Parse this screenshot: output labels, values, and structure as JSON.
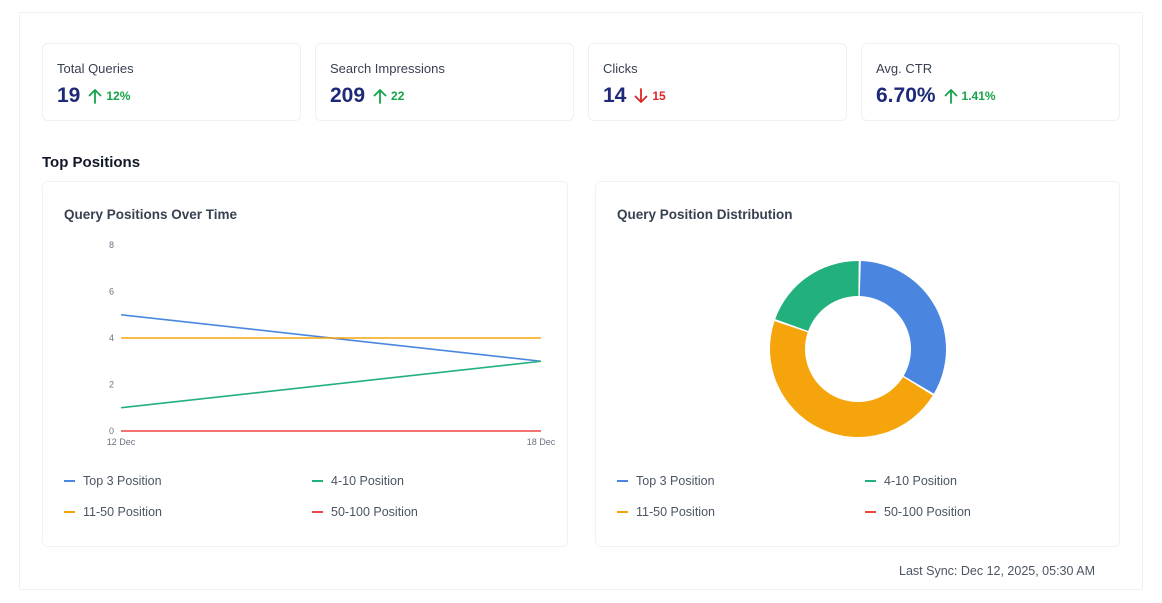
{
  "stats": [
    {
      "label": "Total Queries",
      "value": "19",
      "trend": "up",
      "change": "12%"
    },
    {
      "label": "Search Impressions",
      "value": "209",
      "trend": "up",
      "change": "22"
    },
    {
      "label": "Clicks",
      "value": "14",
      "trend": "down",
      "change": "15"
    },
    {
      "label": "Avg. CTR",
      "value": "6.70%",
      "trend": "up",
      "change": "1.41%"
    }
  ],
  "colors": {
    "up": "#16a34a",
    "down": "#dc2626"
  },
  "section_title": "Top Positions",
  "line_panel": {
    "title": "Query Positions Over Time"
  },
  "donut_panel": {
    "title": "Query Position Distribution"
  },
  "legend": [
    {
      "name": "Top 3 Position",
      "color": "#4a86e0"
    },
    {
      "name": "4-10 Position",
      "color": "#22b07d"
    },
    {
      "name": "11-50 Position",
      "color": "#f5a50b"
    },
    {
      "name": "50-100 Position",
      "color": "#ef4444"
    }
  ],
  "footer": {
    "last_sync": "Last Sync: Dec 12, 2025, 05:30 AM"
  },
  "chart_data": [
    {
      "type": "line",
      "title": "Query Positions Over Time",
      "x": [
        "12 Dec",
        "18 Dec"
      ],
      "yticks": [
        0,
        2,
        4,
        6,
        8
      ],
      "ylim": [
        0,
        8
      ],
      "grid": false,
      "legend_position": "bottom",
      "series": [
        {
          "name": "Top 3 Position",
          "color": "#4a86e0",
          "values": [
            5,
            3
          ]
        },
        {
          "name": "4-10 Position",
          "color": "#22b07d",
          "values": [
            1,
            3
          ]
        },
        {
          "name": "11-50 Position",
          "color": "#f5a50b",
          "values": [
            4,
            4
          ]
        },
        {
          "name": "50-100 Position",
          "color": "#ef4444",
          "values": [
            0,
            0
          ]
        }
      ]
    },
    {
      "type": "pie",
      "title": "Query Position Distribution",
      "legend_position": "bottom",
      "slices": [
        {
          "name": "Top 3 Position",
          "color": "#4a86e0",
          "value": 5
        },
        {
          "name": "11-50 Position",
          "color": "#f5a50b",
          "value": 7
        },
        {
          "name": "4-10 Position",
          "color": "#22b07d",
          "value": 3
        },
        {
          "name": "50-100 Position",
          "color": "#ef4444",
          "value": 0
        }
      ]
    }
  ]
}
